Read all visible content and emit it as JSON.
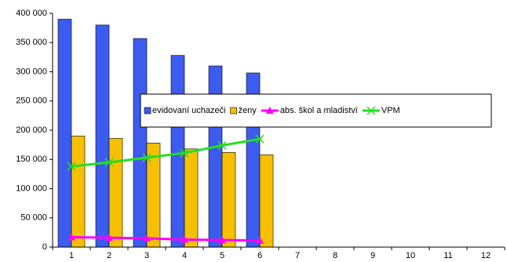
{
  "chart_data": {
    "type": "bar_line",
    "categories": [
      "1",
      "2",
      "3",
      "4",
      "5",
      "6",
      "7",
      "8",
      "9",
      "10",
      "11",
      "12"
    ],
    "series": [
      {
        "name": "evidovaní uchazeči",
        "type": "bar",
        "color": "#3c5cf0",
        "values": [
          390000,
          380000,
          357000,
          328000,
          310000,
          298000,
          null,
          null,
          null,
          null,
          null,
          null
        ]
      },
      {
        "name": "ženy",
        "type": "bar",
        "color": "#f6c000",
        "values": [
          190000,
          186000,
          178000,
          168000,
          162000,
          158000,
          null,
          null,
          null,
          null,
          null,
          null
        ]
      },
      {
        "name": "abs. škol a mladiství",
        "type": "line",
        "marker": "triangle",
        "color": "#ff00ff",
        "values": [
          17000,
          16000,
          15000,
          13000,
          12000,
          11000,
          null,
          null,
          null,
          null,
          null,
          null
        ]
      },
      {
        "name": "VPM",
        "type": "line",
        "marker": "x",
        "color": "#22e022",
        "values": [
          138000,
          145000,
          153000,
          161000,
          174000,
          185000,
          null,
          null,
          null,
          null,
          null,
          null
        ]
      }
    ],
    "ylim": [
      0,
      400000
    ],
    "yticks": [
      0,
      {
        "value": 50000,
        "label": "50 000"
      },
      {
        "value": 100000,
        "label": "100 000"
      },
      {
        "value": 150000,
        "label": "150 000"
      },
      {
        "value": 200000,
        "label": "200 000"
      },
      {
        "value": 250000,
        "label": "250 000"
      },
      {
        "value": 300000,
        "label": "300 000"
      },
      {
        "value": 350000,
        "label": "350 000"
      },
      {
        "value": 400000,
        "label": "400 000"
      }
    ],
    "grid": false
  }
}
